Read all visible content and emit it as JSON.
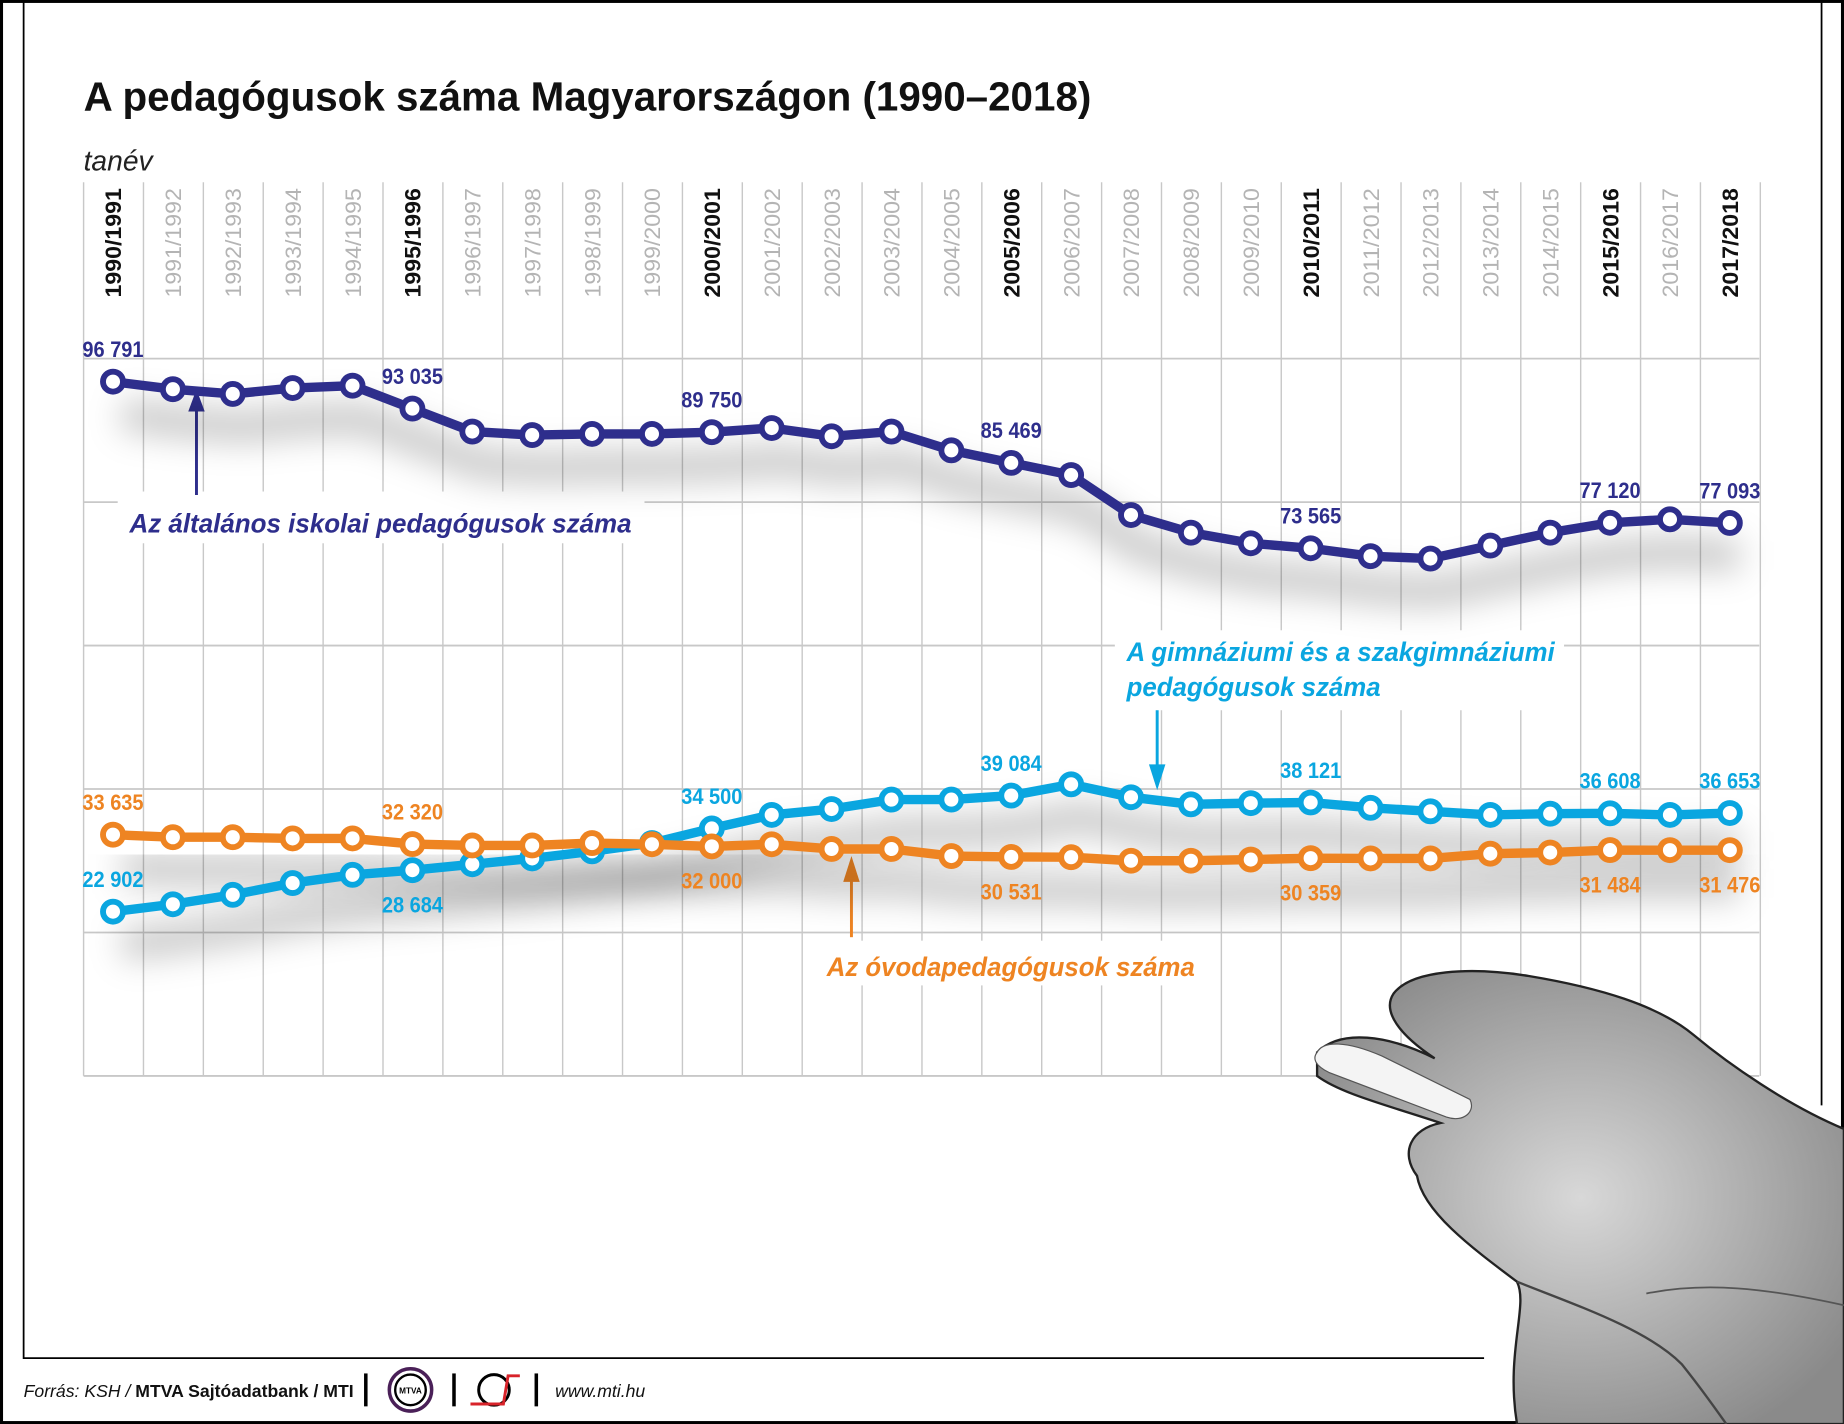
{
  "chart_data": {
    "type": "line",
    "title": "A pedagógusok száma Magyarországon (1990–2018)",
    "xlabel": "tanév",
    "ylabel": "",
    "ylim": [
      0,
      100000
    ],
    "grid": true,
    "categories": [
      "1990/1991",
      "1991/1992",
      "1992/1993",
      "1993/1994",
      "1994/1995",
      "1995/1996",
      "1996/1997",
      "1997/1998",
      "1998/1999",
      "1999/2000",
      "2000/2001",
      "2001/2002",
      "2002/2003",
      "2003/2004",
      "2004/2005",
      "2005/2006",
      "2006/2007",
      "2007/2008",
      "2008/2009",
      "2009/2010",
      "2010/2011",
      "2011/2012",
      "2012/2013",
      "2013/2014",
      "2014/2015",
      "2015/2016",
      "2016/2017",
      "2017/2018"
    ],
    "bold_categories": [
      "1990/1991",
      "1995/1996",
      "2000/2001",
      "2005/2006",
      "2010/2011",
      "2015/2016",
      "2017/2018"
    ],
    "series": [
      {
        "name": "Az általános iskolai pedagógusok száma",
        "color": "#2e2e8c",
        "values": [
          96791,
          95738,
          95082,
          95902,
          96230,
          93035,
          89836,
          89344,
          89508,
          89508,
          89750,
          90328,
          89180,
          89836,
          87213,
          85469,
          83770,
          78197,
          75738,
          74262,
          73565,
          72459,
          72131,
          73934,
          75738,
          77120,
          77600,
          77093
        ],
        "labels": [
          "96 791",
          null,
          null,
          null,
          null,
          "93 035",
          null,
          null,
          null,
          null,
          "89 750",
          null,
          null,
          null,
          null,
          "85 469",
          null,
          null,
          null,
          null,
          "73 565",
          null,
          null,
          null,
          null,
          "77 120",
          null,
          "77 093"
        ]
      },
      {
        "name": "A gimnáziumi és a szakgimnáziumi pedagógusok száma",
        "color": "#0aa6e0",
        "values": [
          22902,
          23934,
          25246,
          26885,
          28033,
          28684,
          29508,
          30328,
          31311,
          32459,
          34500,
          36393,
          37213,
          38525,
          38525,
          39084,
          40656,
          38852,
          37869,
          38033,
          38121,
          37377,
          36885,
          36393,
          36557,
          36608,
          36393,
          36653
        ],
        "labels": [
          "22 902",
          null,
          null,
          null,
          null,
          "28 684",
          null,
          null,
          null,
          null,
          "34 500",
          null,
          null,
          null,
          null,
          "39 084",
          null,
          null,
          null,
          null,
          "38 121",
          null,
          null,
          null,
          null,
          "36 608",
          null,
          "36 653"
        ]
      },
      {
        "name": "Az óvodapedagógusok száma",
        "color": "#ee8422",
        "values": [
          33635,
          33279,
          33279,
          33115,
          33115,
          32320,
          32131,
          32131,
          32459,
          32295,
          32000,
          32295,
          31639,
          31639,
          30656,
          30531,
          30492,
          30000,
          30000,
          30164,
          30359,
          30328,
          30328,
          30984,
          31148,
          31484,
          31476,
          31476
        ],
        "labels": [
          "33 635",
          null,
          null,
          null,
          null,
          "32 320",
          null,
          null,
          null,
          null,
          "32 000",
          null,
          null,
          null,
          null,
          "30 531",
          null,
          null,
          null,
          null,
          "30 359",
          null,
          null,
          null,
          null,
          "31 484",
          null,
          "31 476"
        ]
      }
    ],
    "annotations": {
      "general": "Az általános iskolai pedagógusok száma",
      "gimnazium_line1": "A gimnáziumi és a szakgimnáziumi",
      "gimnazium_line2": "pedagógusok száma",
      "ovoda": "Az óvodapedagógusok száma"
    }
  },
  "footer": {
    "source_prefix": "Forrás: KSH / ",
    "source_bold": "MTVA Sajtóadatbank / MTI",
    "mtva_logo": "MTVA",
    "url": "www.mti.hu"
  }
}
